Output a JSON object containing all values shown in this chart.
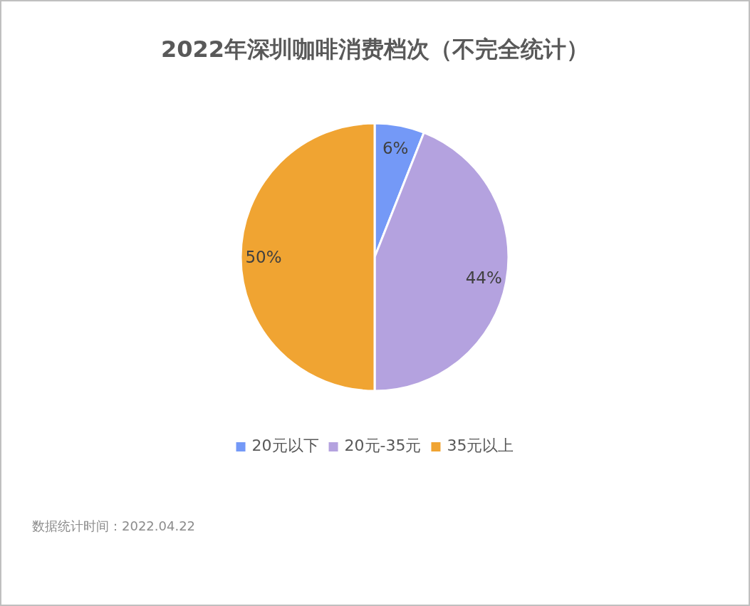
{
  "chart_data": {
    "type": "pie",
    "title": "2022年深圳咖啡消费档次（不完全统计）",
    "categories": [
      "20元以下",
      "20元-35元",
      "35元以上"
    ],
    "values": [
      6,
      44,
      50
    ],
    "colors": [
      "#7499f7",
      "#b4a2df",
      "#f0a432"
    ],
    "value_labels": [
      "6%",
      "44%",
      "50%"
    ],
    "legend": "bottom",
    "annotations": [
      "数据统计时间：2022.04.22"
    ]
  }
}
